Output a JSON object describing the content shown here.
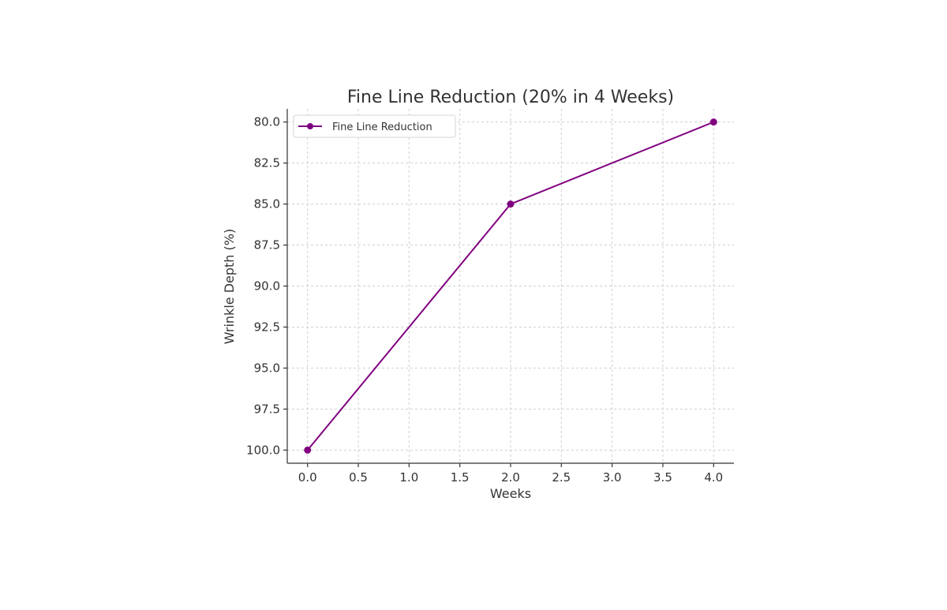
{
  "chart_data": {
    "type": "line",
    "title": "Fine Line Reduction (20% in 4 Weeks)",
    "xlabel": "Weeks",
    "ylabel": "Wrinkle Depth (%)",
    "xlim": [
      -0.2,
      4.2
    ],
    "ylim": [
      100.8,
      79.2
    ],
    "y_inverted": true,
    "grid": true,
    "legend": "top-left",
    "x_ticks": [
      0.0,
      0.5,
      1.0,
      1.5,
      2.0,
      2.5,
      3.0,
      3.5,
      4.0
    ],
    "x_tick_labels": [
      "0.0",
      "0.5",
      "1.0",
      "1.5",
      "2.0",
      "2.5",
      "3.0",
      "3.5",
      "4.0"
    ],
    "y_ticks": [
      80.0,
      82.5,
      85.0,
      87.5,
      90.0,
      92.5,
      95.0,
      97.5,
      100.0
    ],
    "y_tick_labels": [
      "80.0",
      "82.5",
      "85.0",
      "87.5",
      "90.0",
      "92.5",
      "95.0",
      "97.5",
      "100.0"
    ],
    "series": [
      {
        "name": "Fine Line Reduction",
        "color": "#800080",
        "marker": "circle",
        "x": [
          0,
          2,
          4
        ],
        "y": [
          100,
          85,
          80
        ]
      }
    ]
  }
}
